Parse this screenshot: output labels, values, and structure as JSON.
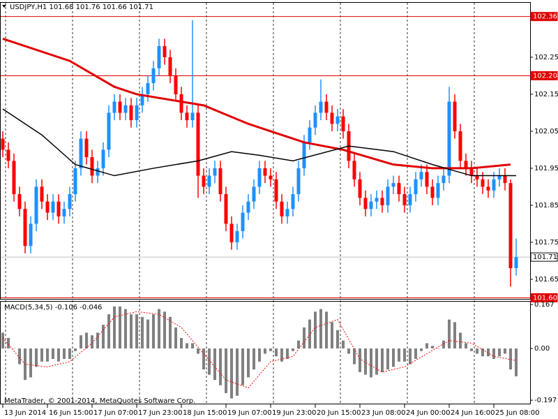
{
  "chart_data": [
    {
      "type": "candlestick",
      "title": "USDJPY,H1  101.68 101.76 101.66 101.71",
      "up_color": "#1e90ff",
      "down_color": "#ff0000",
      "ylim": [
        101.597,
        102.399
      ],
      "yticks": [
        102.25,
        102.15,
        102.05,
        101.95,
        101.85,
        101.75,
        101.65
      ],
      "xticks": [
        {
          "value": 0,
          "label": "13 Jun 2014"
        },
        {
          "value": 8,
          "label": "16 Jun 15:00"
        },
        {
          "value": 16,
          "label": "17 Jun 07:00"
        },
        {
          "value": 24,
          "label": "17 Jun 23:00"
        },
        {
          "value": 32,
          "label": "18 Jun 15:00"
        },
        {
          "value": 40,
          "label": "19 Jun 07:00"
        },
        {
          "value": 48,
          "label": "19 Jun 23:00"
        },
        {
          "value": 56,
          "label": "20 Jun 15:00"
        },
        {
          "value": 64,
          "label": "23 Jun 08:00"
        },
        {
          "value": 72,
          "label": "24 Jun 00:00"
        },
        {
          "value": 80,
          "label": "24 Jun 16:00"
        },
        {
          "value": 88,
          "label": "25 Jun 08:00"
        }
      ],
      "vgrid": [
        0.5,
        12.5,
        24.5,
        36.5,
        48.5,
        60.5,
        72.5,
        84.5
      ],
      "levels": [
        {
          "value": 102.36,
          "color": "#e00000",
          "box": "#e00000"
        },
        {
          "value": 102.2,
          "label": "102.20",
          "color": "#e00000",
          "box": "#e00000"
        },
        {
          "value": 101.71,
          "color": "#c0c0c0",
          "box": "#ffffff"
        },
        {
          "value": 101.6,
          "label": "101.60",
          "color": "#e00000",
          "box": "#e00000"
        }
      ],
      "ohlc": [
        [
          102.03,
          102.05,
          101.98,
          102.0
        ],
        [
          102.0,
          102.02,
          101.95,
          101.97
        ],
        [
          101.97,
          101.99,
          101.86,
          101.88
        ],
        [
          101.88,
          101.9,
          101.82,
          101.84
        ],
        [
          101.84,
          101.86,
          101.72,
          101.74
        ],
        [
          101.74,
          101.82,
          101.72,
          101.8
        ],
        [
          101.8,
          101.92,
          101.78,
          101.9
        ],
        [
          101.9,
          101.92,
          101.84,
          101.86
        ],
        [
          101.86,
          101.88,
          101.81,
          101.83
        ],
        [
          101.83,
          101.88,
          101.81,
          101.86
        ],
        [
          101.86,
          101.88,
          101.8,
          101.82
        ],
        [
          101.82,
          101.86,
          101.8,
          101.84
        ],
        [
          101.84,
          101.9,
          101.82,
          101.88
        ],
        [
          101.88,
          101.97,
          101.86,
          101.95
        ],
        [
          101.95,
          102.05,
          101.93,
          102.03
        ],
        [
          102.03,
          102.05,
          101.96,
          101.98
        ],
        [
          101.98,
          102.0,
          101.91,
          101.93
        ],
        [
          101.93,
          101.97,
          101.91,
          101.95
        ],
        [
          101.95,
          102.02,
          101.93,
          102.0
        ],
        [
          102.0,
          102.12,
          101.98,
          102.1
        ],
        [
          102.1,
          102.15,
          102.08,
          102.13
        ],
        [
          102.13,
          102.15,
          102.08,
          102.1
        ],
        [
          102.1,
          102.14,
          102.08,
          102.12
        ],
        [
          102.12,
          102.14,
          102.06,
          102.08
        ],
        [
          102.08,
          102.14,
          102.06,
          102.12
        ],
        [
          102.12,
          102.17,
          102.1,
          102.15
        ],
        [
          102.15,
          102.2,
          102.13,
          102.18
        ],
        [
          102.18,
          102.24,
          102.16,
          102.22
        ],
        [
          102.22,
          102.3,
          102.2,
          102.28
        ],
        [
          102.28,
          102.3,
          102.23,
          102.25
        ],
        [
          102.25,
          102.27,
          102.18,
          102.2
        ],
        [
          102.2,
          102.22,
          102.13,
          102.15
        ],
        [
          102.15,
          102.17,
          102.08,
          102.1
        ],
        [
          102.1,
          102.12,
          102.06,
          102.08
        ],
        [
          102.08,
          102.35,
          102.06,
          102.1
        ],
        [
          102.1,
          102.12,
          101.87,
          101.93
        ],
        [
          101.93,
          101.95,
          101.88,
          101.9
        ],
        [
          101.9,
          101.95,
          101.88,
          101.93
        ],
        [
          101.93,
          101.97,
          101.91,
          101.95
        ],
        [
          101.95,
          101.97,
          101.86,
          101.88
        ],
        [
          101.88,
          101.9,
          101.78,
          101.8
        ],
        [
          101.8,
          101.82,
          101.73,
          101.75
        ],
        [
          101.75,
          101.8,
          101.73,
          101.78
        ],
        [
          101.78,
          101.85,
          101.76,
          101.83
        ],
        [
          101.83,
          101.88,
          101.81,
          101.86
        ],
        [
          101.86,
          101.92,
          101.84,
          101.9
        ],
        [
          101.9,
          101.97,
          101.88,
          101.95
        ],
        [
          101.95,
          101.97,
          101.91,
          101.93
        ],
        [
          101.93,
          101.95,
          101.9,
          101.92
        ],
        [
          101.92,
          101.94,
          101.84,
          101.86
        ],
        [
          101.86,
          101.88,
          101.8,
          101.82
        ],
        [
          101.82,
          101.86,
          101.8,
          101.84
        ],
        [
          101.84,
          101.9,
          101.82,
          101.88
        ],
        [
          101.88,
          101.97,
          101.86,
          101.95
        ],
        [
          101.95,
          102.04,
          101.93,
          102.02
        ],
        [
          102.02,
          102.08,
          102.0,
          102.06
        ],
        [
          102.06,
          102.12,
          102.04,
          102.1
        ],
        [
          102.1,
          102.19,
          102.08,
          102.13
        ],
        [
          102.13,
          102.15,
          102.08,
          102.1
        ],
        [
          102.1,
          102.12,
          102.05,
          102.07
        ],
        [
          102.07,
          102.11,
          102.05,
          102.09
        ],
        [
          102.09,
          102.11,
          102.03,
          102.05
        ],
        [
          102.05,
          102.07,
          101.95,
          101.97
        ],
        [
          101.97,
          101.99,
          101.9,
          101.92
        ],
        [
          101.92,
          101.94,
          101.85,
          101.87
        ],
        [
          101.87,
          101.89,
          101.82,
          101.84
        ],
        [
          101.84,
          101.88,
          101.82,
          101.86
        ],
        [
          101.86,
          101.89,
          101.84,
          101.87
        ],
        [
          101.87,
          101.89,
          101.83,
          101.85
        ],
        [
          101.85,
          101.92,
          101.83,
          101.9
        ],
        [
          101.9,
          101.93,
          101.88,
          101.91
        ],
        [
          101.91,
          101.93,
          101.86,
          101.88
        ],
        [
          101.88,
          101.9,
          101.83,
          101.85
        ],
        [
          101.85,
          101.9,
          101.83,
          101.88
        ],
        [
          101.88,
          101.94,
          101.86,
          101.92
        ],
        [
          101.92,
          101.96,
          101.9,
          101.94
        ],
        [
          101.94,
          101.96,
          101.88,
          101.9
        ],
        [
          101.9,
          101.92,
          101.85,
          101.87
        ],
        [
          101.87,
          101.93,
          101.85,
          101.91
        ],
        [
          101.91,
          101.95,
          101.89,
          101.93
        ],
        [
          101.93,
          102.17,
          101.91,
          102.13
        ],
        [
          102.13,
          102.15,
          102.03,
          102.05
        ],
        [
          102.05,
          102.07,
          101.95,
          101.97
        ],
        [
          101.97,
          101.99,
          101.93,
          101.95
        ],
        [
          101.95,
          101.97,
          101.91,
          101.93
        ],
        [
          101.93,
          101.95,
          101.9,
          101.92
        ],
        [
          101.92,
          101.94,
          101.88,
          101.9
        ],
        [
          101.9,
          101.92,
          101.87,
          101.89
        ],
        [
          101.89,
          101.94,
          101.87,
          101.92
        ],
        [
          101.92,
          101.95,
          101.9,
          101.93
        ],
        [
          101.93,
          101.95,
          101.89,
          101.91
        ],
        [
          101.91,
          101.92,
          101.63,
          101.68
        ],
        [
          101.68,
          101.76,
          101.66,
          101.71
        ]
      ],
      "lines": [
        {
          "color": "#e00000",
          "width": 3,
          "x": [
            0,
            12,
            20,
            24,
            36,
            44,
            54,
            61,
            70,
            77,
            84,
            91
          ],
          "values": [
            102.3,
            102.24,
            102.17,
            102.15,
            102.12,
            102.07,
            102.02,
            102.0,
            101.96,
            101.95,
            101.95,
            101.96
          ]
        },
        {
          "color": "#000000",
          "width": 1.5,
          "x": [
            0,
            7,
            13,
            20,
            27,
            35,
            41,
            46,
            52,
            62,
            70,
            77,
            84,
            92
          ],
          "values": [
            102.11,
            102.04,
            101.96,
            101.93,
            101.95,
            101.97,
            101.995,
            101.985,
            101.97,
            102.01,
            101.995,
            101.96,
            101.93,
            101.93
          ]
        }
      ]
    },
    {
      "type": "macd",
      "title": "MACD(5,34,5) -0.106 -0.046",
      "footer": "MetaTrader, © 2001-2014, MetaQuotes Software Corp.",
      "ylim": [
        -0.21,
        0.178
      ],
      "yticks": [
        0.167,
        {
          "value": 0,
          "label": "0.00"
        },
        -0.197
      ],
      "color": "#808080",
      "signal_color": "#ff0000",
      "values": [
        0.06,
        0.04,
        0.0,
        -0.06,
        -0.12,
        -0.11,
        -0.07,
        -0.05,
        -0.05,
        -0.04,
        -0.05,
        -0.04,
        -0.04,
        -0.01,
        0.05,
        0.06,
        0.05,
        0.06,
        0.09,
        0.13,
        0.16,
        0.16,
        0.15,
        0.13,
        0.13,
        0.12,
        0.11,
        0.13,
        0.15,
        0.14,
        0.12,
        0.08,
        0.04,
        0.02,
        0.02,
        -0.02,
        -0.08,
        -0.1,
        -0.12,
        -0.14,
        -0.17,
        -0.19,
        -0.18,
        -0.14,
        -0.11,
        -0.08,
        -0.05,
        -0.02,
        -0.01,
        -0.03,
        -0.05,
        -0.04,
        -0.01,
        0.03,
        0.08,
        0.11,
        0.14,
        0.15,
        0.14,
        0.1,
        0.07,
        0.03,
        -0.02,
        -0.06,
        -0.09,
        -0.1,
        -0.11,
        -0.1,
        -0.09,
        -0.08,
        -0.07,
        -0.05,
        -0.05,
        -0.06,
        -0.04,
        -0.01,
        0.02,
        0.01,
        0.0,
        0.03,
        0.11,
        0.1,
        0.06,
        0.02,
        -0.01,
        -0.02,
        -0.03,
        -0.03,
        -0.04,
        -0.03,
        -0.02,
        -0.08,
        -0.106
      ],
      "signal": {
        "x": [
          0,
          4,
          8,
          12,
          16,
          20,
          24,
          28,
          32,
          36,
          40,
          44,
          48,
          52,
          56,
          60,
          64,
          68,
          72,
          76,
          80,
          84,
          88,
          92
        ],
        "values": [
          0.04,
          -0.06,
          -0.07,
          -0.05,
          0.02,
          0.12,
          0.14,
          0.13,
          0.08,
          -0.02,
          -0.12,
          -0.15,
          -0.05,
          -0.03,
          0.08,
          0.11,
          -0.04,
          -0.09,
          -0.07,
          -0.02,
          0.03,
          0.02,
          -0.03,
          -0.046
        ]
      }
    }
  ]
}
